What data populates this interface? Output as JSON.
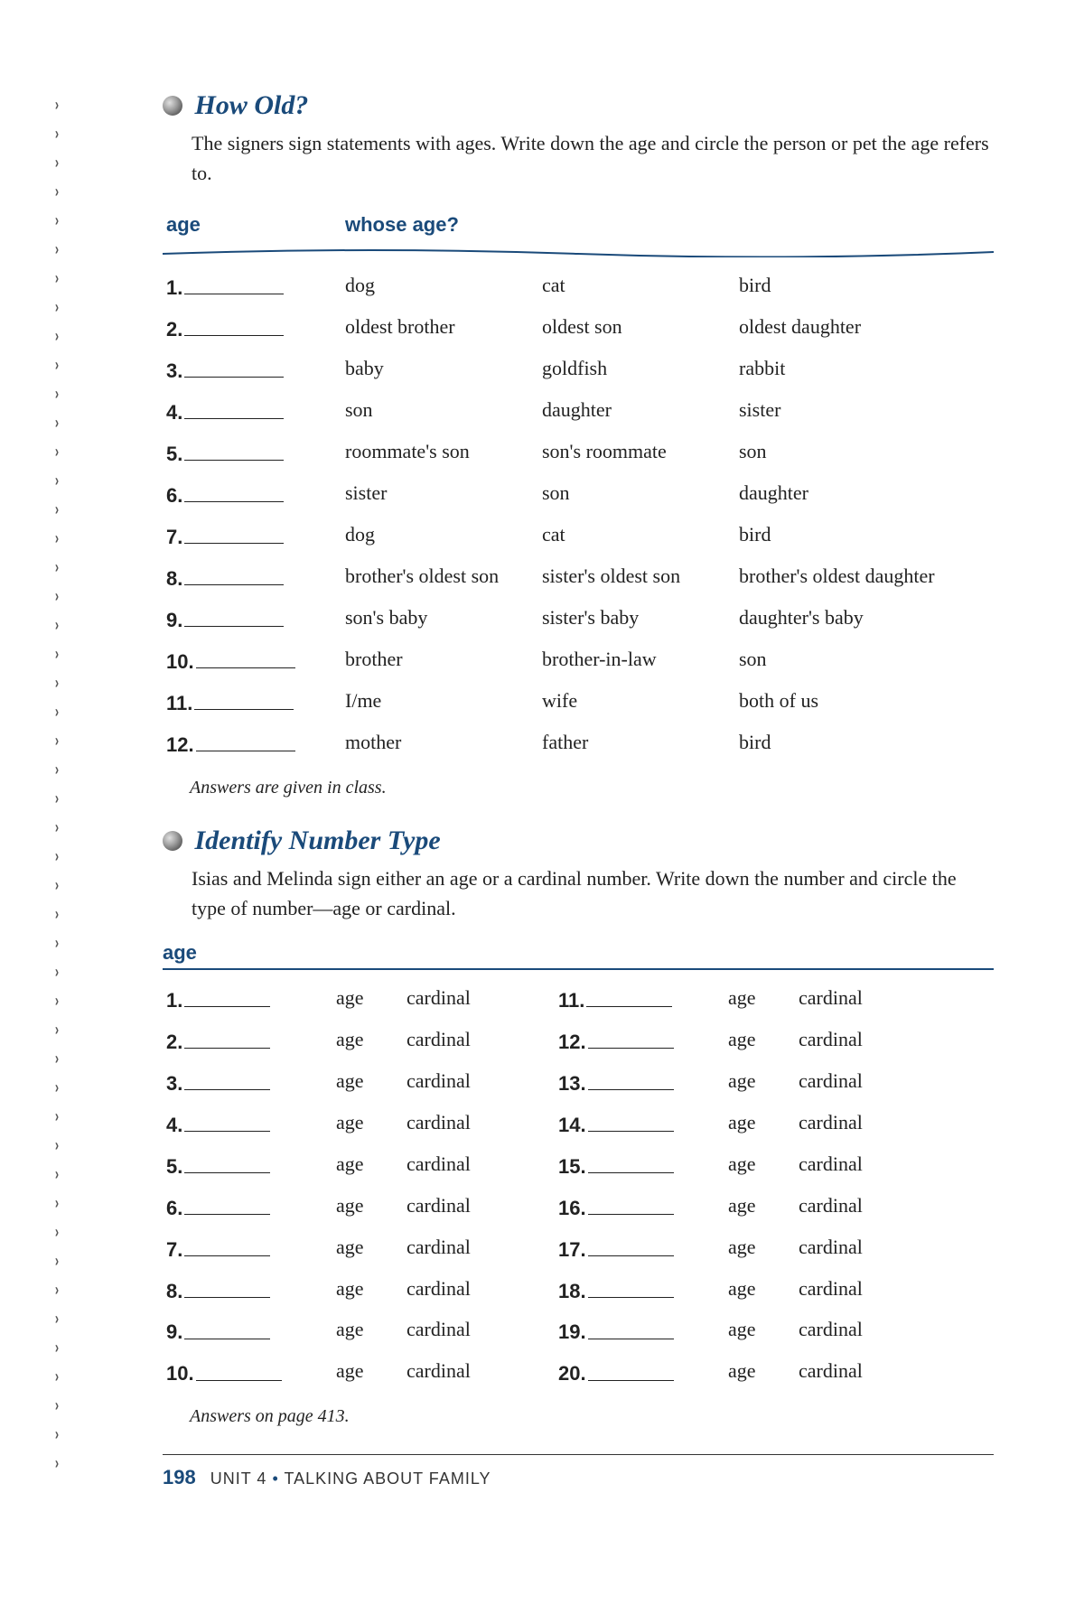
{
  "colors": {
    "accent": "#1a4a7a",
    "text": "#222222",
    "page_bg": "#ffffff"
  },
  "binding_marks_count": 48,
  "section1": {
    "title": "How Old?",
    "instructions": "The signers sign statements with ages. Write down the age and circle the person or pet the age refers to.",
    "header_age": "age",
    "header_whose": "whose age?",
    "rows": [
      {
        "n": "1.",
        "a": "dog",
        "b": "cat",
        "c": "bird"
      },
      {
        "n": "2.",
        "a": "oldest brother",
        "b": "oldest son",
        "c": "oldest daughter"
      },
      {
        "n": "3.",
        "a": "baby",
        "b": "goldfish",
        "c": "rabbit"
      },
      {
        "n": "4.",
        "a": "son",
        "b": "daughter",
        "c": "sister"
      },
      {
        "n": "5.",
        "a": "roommate's son",
        "b": "son's roommate",
        "c": "son"
      },
      {
        "n": "6.",
        "a": "sister",
        "b": "son",
        "c": "daughter"
      },
      {
        "n": "7.",
        "a": "dog",
        "b": "cat",
        "c": "bird"
      },
      {
        "n": "8.",
        "a": "brother's oldest son",
        "b": "sister's oldest son",
        "c": "brother's oldest daughter"
      },
      {
        "n": "9.",
        "a": "son's baby",
        "b": "sister's baby",
        "c": "daughter's baby"
      },
      {
        "n": "10.",
        "a": "brother",
        "b": "brother-in-law",
        "c": "son"
      },
      {
        "n": "11.",
        "a": "I/me",
        "b": "wife",
        "c": "both of us"
      },
      {
        "n": "12.",
        "a": "mother",
        "b": "father",
        "c": "bird"
      }
    ],
    "answers_note": "Answers are given in class."
  },
  "section2": {
    "title": "Identify Number Type",
    "instructions": "Isias and Melinda sign either an age or a cardinal number. Write down the number and circle the type of number—age or cardinal.",
    "header_age": "age",
    "opt_a": "age",
    "opt_b": "cardinal",
    "left_rows": [
      {
        "n": "1."
      },
      {
        "n": "2."
      },
      {
        "n": "3."
      },
      {
        "n": "4."
      },
      {
        "n": "5."
      },
      {
        "n": "6."
      },
      {
        "n": "7."
      },
      {
        "n": "8."
      },
      {
        "n": "9."
      },
      {
        "n": "10."
      }
    ],
    "right_rows": [
      {
        "n": "11."
      },
      {
        "n": "12."
      },
      {
        "n": "13."
      },
      {
        "n": "14."
      },
      {
        "n": "15."
      },
      {
        "n": "16."
      },
      {
        "n": "17."
      },
      {
        "n": "18."
      },
      {
        "n": "19."
      },
      {
        "n": "20."
      }
    ],
    "answers_note": "Answers on page 413."
  },
  "footer": {
    "page_number": "198",
    "unit": "UNIT 4",
    "separator": "•",
    "title": "TALKING ABOUT FAMILY"
  }
}
